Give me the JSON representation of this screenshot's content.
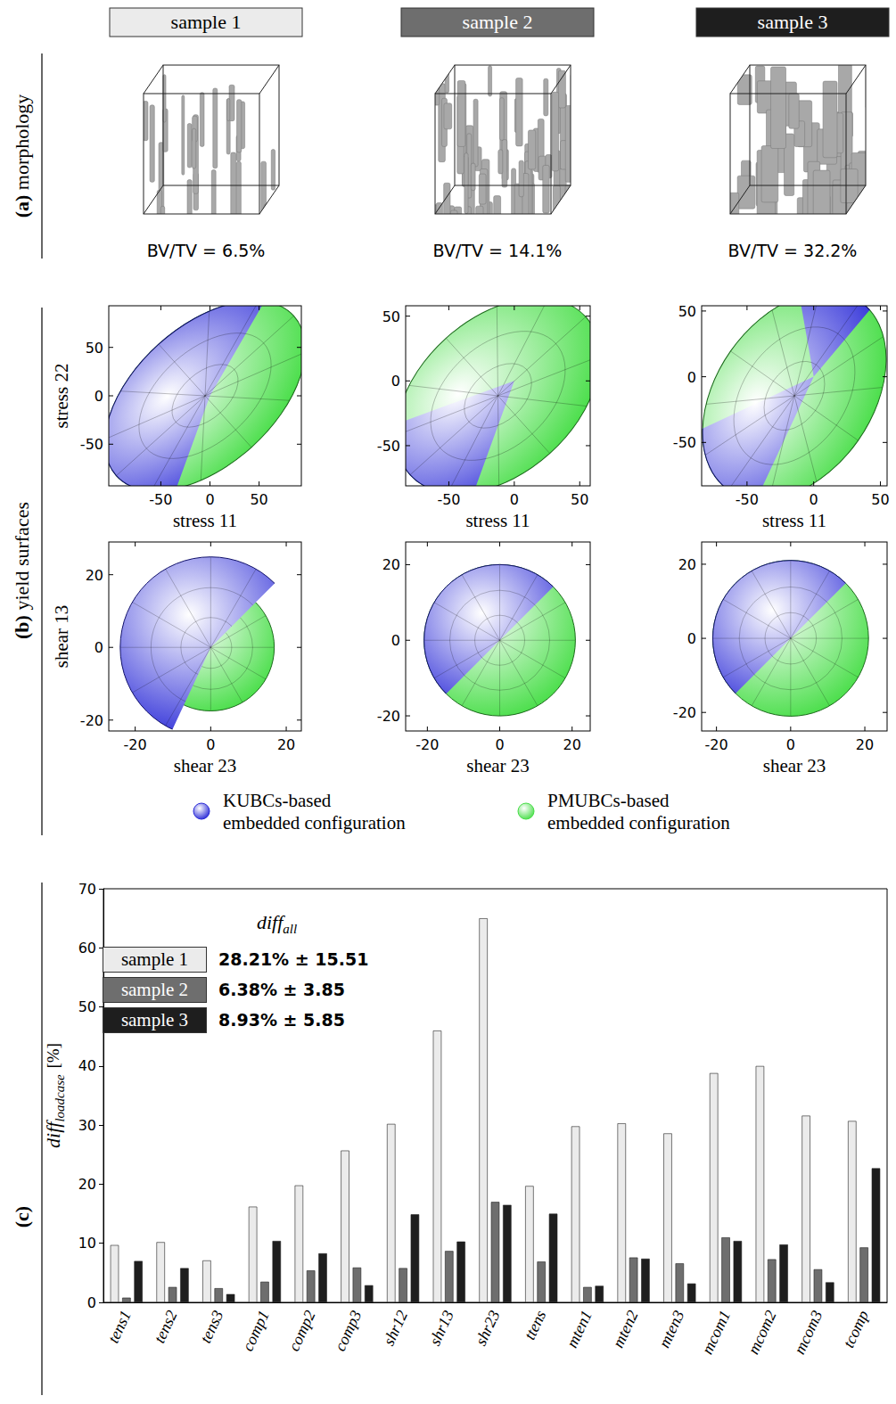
{
  "morphology": {
    "label": "(a)",
    "title": "morphology",
    "texts": [
      "BV/TV = 6.5%",
      "BV/TV = 14.1%",
      "BV/TV = 32.2%"
    ]
  },
  "yield_surfaces": {
    "label": "(b)",
    "title": "yield surfaces",
    "rows": [
      {
        "xlabel": "stress 11",
        "ylabel": "stress 22",
        "panels": [
          {
            "xlim": [
              -103,
              93
            ],
            "ylim": [
              -93,
              93
            ],
            "xticks": [
              -50,
              0,
              50
            ],
            "yticks": [
              -50,
              0,
              50
            ]
          },
          {
            "xlim": [
              -83,
              58
            ],
            "ylim": [
              -81,
              58
            ],
            "xticks": [
              -50,
              0,
              50
            ],
            "yticks": [
              -50,
              0,
              50
            ]
          },
          {
            "xlim": [
              -84,
              55
            ],
            "ylim": [
              -83,
              54
            ],
            "xticks": [
              -50,
              0,
              50
            ],
            "yticks": [
              -50,
              0,
              50
            ]
          }
        ]
      },
      {
        "xlabel": "shear 23",
        "ylabel": "shear 13",
        "panels": [
          {
            "xlim": [
              -27,
              24
            ],
            "ylim": [
              -23,
              29
            ],
            "xticks": [
              -20,
              0,
              20
            ],
            "yticks": [
              -20,
              0,
              20
            ]
          },
          {
            "xlim": [
              -26,
              25
            ],
            "ylim": [
              -24,
              26
            ],
            "xticks": [
              -20,
              0,
              20
            ],
            "yticks": [
              -20,
              0,
              20
            ]
          },
          {
            "xlim": [
              -24,
              26
            ],
            "ylim": [
              -25,
              26
            ],
            "xticks": [
              -20,
              0,
              20
            ],
            "yticks": [
              -20,
              0,
              20
            ]
          }
        ]
      }
    ],
    "legend": [
      {
        "name": "KUBCs-based embedded configuration",
        "color": "#2424d6"
      },
      {
        "name": "PMUBCs-based embedded configuration",
        "color": "#44dd44"
      }
    ]
  },
  "chart_data": {
    "type": "bar",
    "panel_label": "(c)",
    "ylabel": {
      "text": "diff",
      "subscript": "loadcase",
      "unit": "[%]"
    },
    "categories": [
      "tens1",
      "tens2",
      "tens3",
      "comp1",
      "comp2",
      "comp3",
      "shr12",
      "shr13",
      "shr23",
      "ttens",
      "mten1",
      "mten2",
      "mten3",
      "mcom1",
      "mcom2",
      "mcom3",
      "tcomp"
    ],
    "series": [
      {
        "name": "sample 1",
        "color": "#ebebeb",
        "values": [
          9.7,
          10.2,
          7.1,
          16.2,
          19.8,
          25.7,
          30.2,
          46.0,
          65.0,
          19.7,
          29.8,
          30.3,
          28.6,
          38.8,
          40.0,
          31.6,
          30.7
        ]
      },
      {
        "name": "sample 2",
        "color": "#6e6e6e",
        "values": [
          0.8,
          2.6,
          2.4,
          3.5,
          5.4,
          5.9,
          5.8,
          8.7,
          17.0,
          6.9,
          2.6,
          7.6,
          6.6,
          11.0,
          7.3,
          5.6,
          9.3
        ]
      },
      {
        "name": "sample 3",
        "color": "#1e1e1e",
        "values": [
          7.0,
          5.8,
          1.4,
          10.4,
          8.3,
          2.9,
          14.9,
          10.3,
          16.5,
          15.0,
          2.8,
          7.4,
          3.2,
          10.4,
          9.8,
          3.4,
          22.7
        ]
      }
    ],
    "ylim": [
      0,
      70
    ],
    "yticks": [
      0,
      10,
      20,
      30,
      40,
      50,
      60,
      70
    ],
    "grid": false,
    "summary": {
      "title": {
        "text": "diff",
        "subscript": "all"
      },
      "rows": [
        "28.21% ± 15.51",
        "6.38% ± 3.85",
        "8.93% ± 5.85"
      ]
    }
  }
}
